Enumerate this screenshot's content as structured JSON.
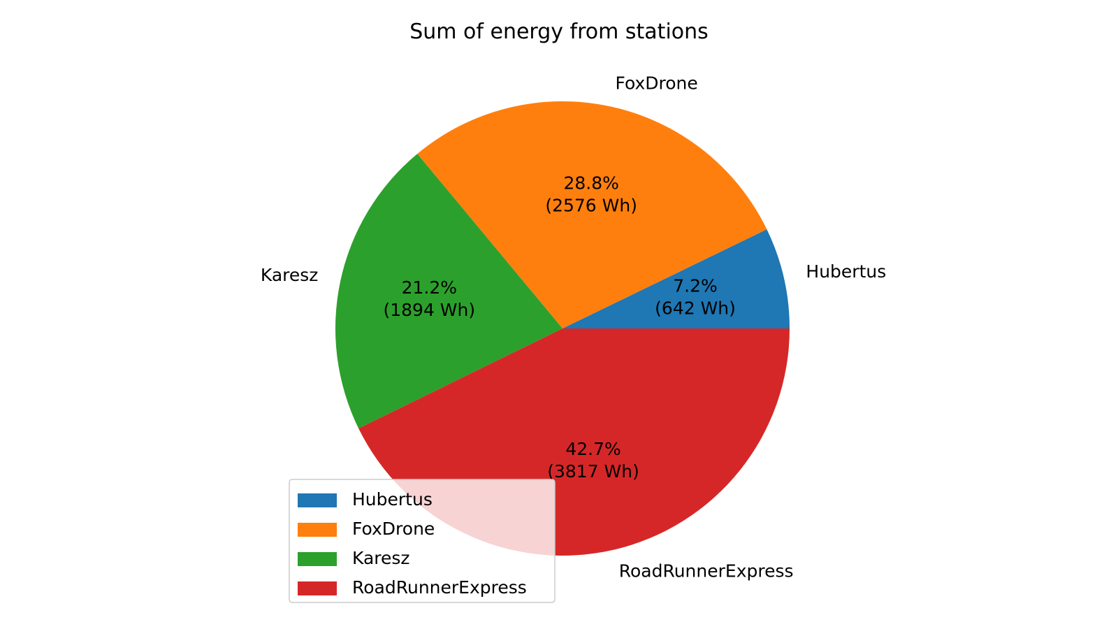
{
  "chart_data": {
    "type": "pie",
    "title": "Sum of energy from stations",
    "slices": [
      {
        "label": "Hubertus",
        "value": 642,
        "percent_label": "7.2%",
        "value_label": "(642 Wh)",
        "color": "#1f77b4"
      },
      {
        "label": "FoxDrone",
        "value": 2576,
        "percent_label": "28.8%",
        "value_label": "(2576 Wh)",
        "color": "#ff7f0e"
      },
      {
        "label": "Karesz",
        "value": 1894,
        "percent_label": "21.2%",
        "value_label": "(1894 Wh)",
        "color": "#2ca02c"
      },
      {
        "label": "RoadRunnerExpress",
        "value": 3817,
        "percent_label": "42.7%",
        "value_label": "(3817 Wh)",
        "color": "#d62728"
      }
    ],
    "start_angle_deg": 0,
    "direction": "counterclockwise",
    "legend": {
      "placement": "lower-left",
      "entries": [
        "Hubertus",
        "FoxDrone",
        "Karesz",
        "RoadRunnerExpress"
      ]
    }
  }
}
